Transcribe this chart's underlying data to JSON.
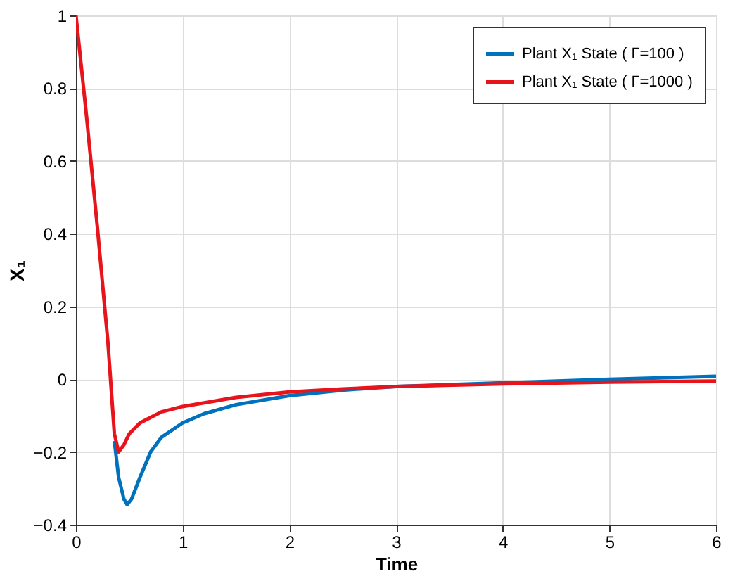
{
  "chart_data": {
    "type": "line",
    "xlabel": "Time",
    "ylabel": "X₁",
    "xlim": [
      0,
      6
    ],
    "xticks": [
      0,
      1,
      2,
      3,
      4,
      5,
      6
    ],
    "ylim": [
      -0.4,
      1
    ],
    "yticks": [
      -0.4,
      -0.2,
      0,
      0.2,
      0.4,
      0.6,
      0.8,
      1
    ],
    "grid": true,
    "legend": "top right",
    "line_style": "solid",
    "marker": "none",
    "series": [
      {
        "name": "Plant X₁ State ( Γ=100 )",
        "color": "#0072bd",
        "x": [
          0.36,
          0.4,
          0.45,
          0.48,
          0.52,
          0.6,
          0.7,
          0.8,
          1,
          1.2,
          1.5,
          2,
          2.5,
          3,
          4,
          5,
          6
        ],
        "values": [
          -0.17,
          -0.27,
          -0.33,
          -0.345,
          -0.33,
          -0.27,
          -0.2,
          -0.16,
          -0.12,
          -0.095,
          -0.07,
          -0.045,
          -0.03,
          -0.02,
          -0.01,
          0,
          0.008
        ]
      },
      {
        "name": "Plant X₁ State ( Γ=1000 )",
        "color": "#e8141c",
        "x": [
          0,
          0.1,
          0.2,
          0.3,
          0.36,
          0.4,
          0.45,
          0.5,
          0.6,
          0.8,
          1,
          1.5,
          2,
          2.5,
          3,
          4,
          5,
          6
        ],
        "values": [
          1,
          0.72,
          0.42,
          0.1,
          -0.15,
          -0.2,
          -0.18,
          -0.15,
          -0.12,
          -0.09,
          -0.075,
          -0.05,
          -0.035,
          -0.027,
          -0.02,
          -0.013,
          -0.008,
          -0.005
        ]
      }
    ]
  }
}
